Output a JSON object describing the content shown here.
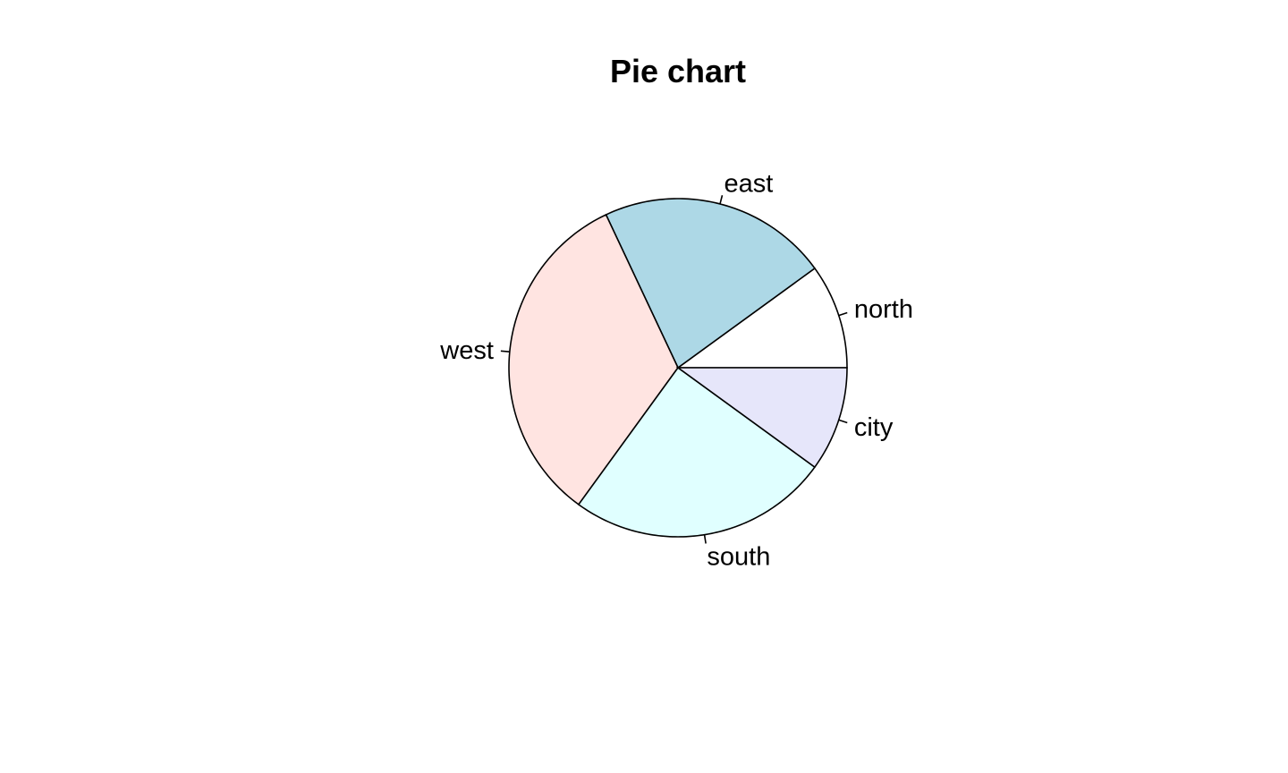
{
  "chart_data": {
    "type": "pie",
    "title": "Pie chart",
    "start_angle_deg": 0,
    "direction": "counterclockwise",
    "slices": [
      {
        "label": "north",
        "value": 10,
        "color": "#ffffff"
      },
      {
        "label": "east",
        "value": 22,
        "color": "#add8e6"
      },
      {
        "label": "west",
        "value": 33,
        "color": "#ffe4e1"
      },
      {
        "label": "south",
        "value": 25,
        "color": "#e0ffff"
      },
      {
        "label": "city",
        "value": 10,
        "color": "#e6e6fa"
      }
    ]
  }
}
